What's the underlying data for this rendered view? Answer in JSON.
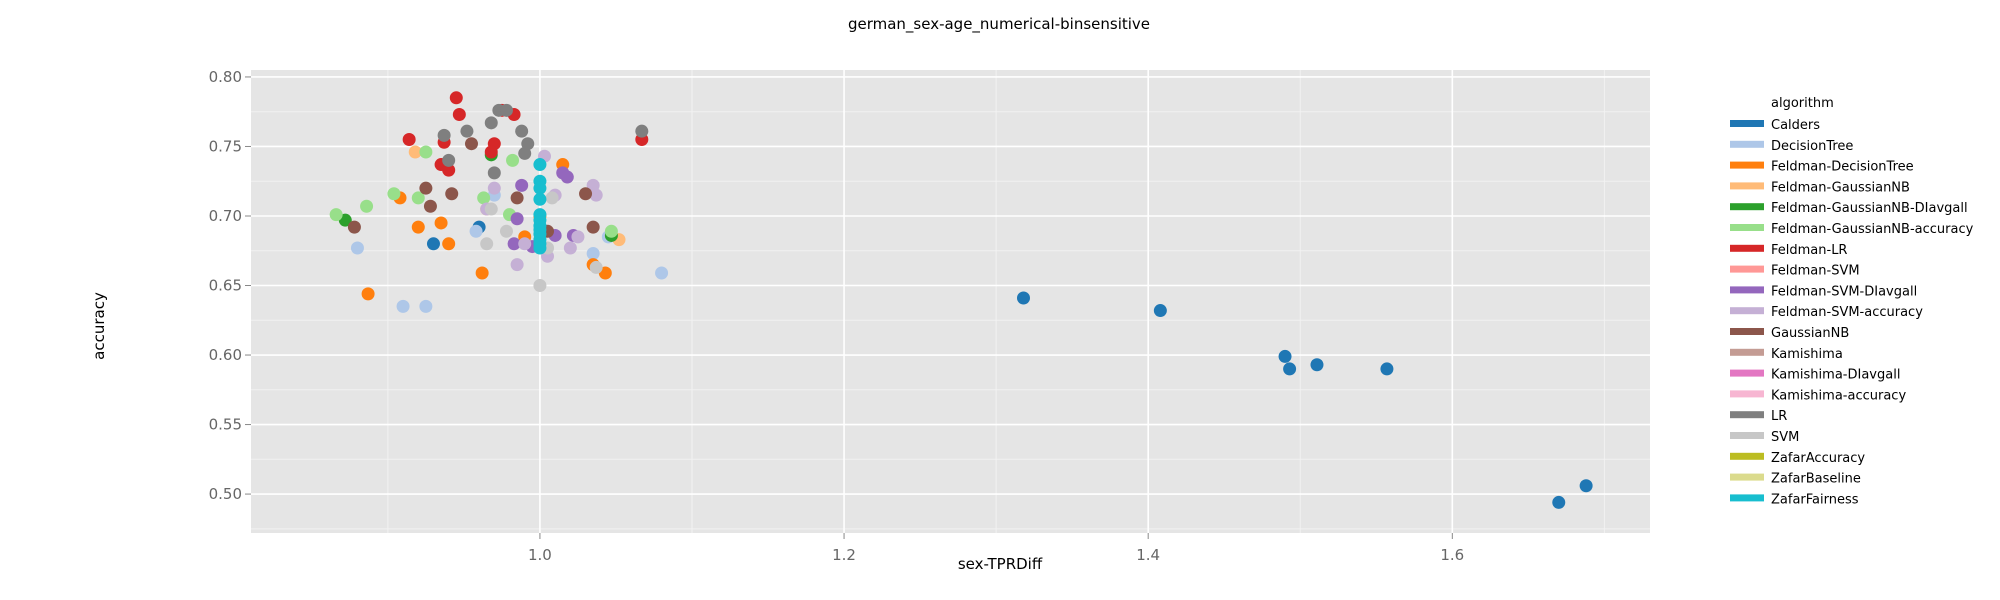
{
  "chart_data": {
    "type": "scatter",
    "title": "german_sex-age_numerical-binsensitive",
    "xlabel": "sex-TPRDiff",
    "ylabel": "accuracy",
    "xlim": [
      0.81,
      1.73
    ],
    "ylim": [
      0.472,
      0.805
    ],
    "xticks": [
      1.0,
      1.2,
      1.4,
      1.6
    ],
    "xtick_labels": [
      "1.0",
      "1.2",
      "1.4",
      "1.6"
    ],
    "yticks": [
      0.5,
      0.55,
      0.6,
      0.65,
      0.7,
      0.75,
      0.8
    ],
    "ytick_labels": [
      "0.50",
      "0.55",
      "0.60",
      "0.65",
      "0.70",
      "0.75",
      "0.80"
    ],
    "grid": true,
    "legend_title": "algorithm",
    "legend_position": "right",
    "series": [
      {
        "name": "Calders",
        "color": "#1f77b4",
        "points": [
          [
            0.96,
            0.692
          ],
          [
            0.93,
            0.68
          ],
          [
            1.318,
            0.641
          ],
          [
            1.408,
            0.632
          ],
          [
            1.49,
            0.599
          ],
          [
            1.493,
            0.59
          ],
          [
            1.511,
            0.593
          ],
          [
            1.557,
            0.59
          ],
          [
            1.67,
            0.494
          ],
          [
            1.688,
            0.506
          ]
        ]
      },
      {
        "name": "DecisionTree",
        "color": "#aec7e8",
        "points": [
          [
            0.88,
            0.677
          ],
          [
            0.91,
            0.635
          ],
          [
            0.925,
            0.635
          ],
          [
            0.958,
            0.689
          ],
          [
            0.97,
            0.715
          ],
          [
            1.035,
            0.673
          ],
          [
            1.08,
            0.659
          ],
          [
            1.045,
            0.685
          ]
        ]
      },
      {
        "name": "Feldman-DecisionTree",
        "color": "#ff7f0e",
        "points": [
          [
            0.887,
            0.644
          ],
          [
            0.908,
            0.713
          ],
          [
            0.92,
            0.692
          ],
          [
            0.935,
            0.695
          ],
          [
            0.94,
            0.68
          ],
          [
            0.962,
            0.659
          ],
          [
            0.99,
            0.685
          ],
          [
            1.015,
            0.737
          ],
          [
            1.035,
            0.665
          ],
          [
            1.043,
            0.659
          ],
          [
            1.0,
            0.7
          ]
        ]
      },
      {
        "name": "Feldman-GaussianNB",
        "color": "#ffbb78",
        "points": [
          [
            0.918,
            0.746
          ],
          [
            1.052,
            0.683
          ],
          [
            0.965,
            0.705
          ]
        ]
      },
      {
        "name": "Feldman-GaussianNB-DIavgall",
        "color": "#2ca02c",
        "points": [
          [
            0.872,
            0.697
          ],
          [
            0.968,
            0.744
          ],
          [
            1.047,
            0.686
          ]
        ]
      },
      {
        "name": "Feldman-GaussianNB-accuracy",
        "color": "#98df8a",
        "points": [
          [
            0.866,
            0.701
          ],
          [
            0.886,
            0.707
          ],
          [
            0.904,
            0.716
          ],
          [
            0.92,
            0.713
          ],
          [
            0.925,
            0.746
          ],
          [
            0.963,
            0.713
          ],
          [
            0.98,
            0.701
          ],
          [
            0.982,
            0.74
          ],
          [
            1.047,
            0.689
          ]
        ]
      },
      {
        "name": "Feldman-LR",
        "color": "#d62728",
        "points": [
          [
            0.914,
            0.755
          ],
          [
            0.935,
            0.737
          ],
          [
            0.937,
            0.753
          ],
          [
            0.94,
            0.733
          ],
          [
            0.945,
            0.785
          ],
          [
            0.947,
            0.773
          ],
          [
            0.97,
            0.752
          ],
          [
            0.975,
            0.776
          ],
          [
            0.983,
            0.773
          ],
          [
            0.968,
            0.746
          ],
          [
            1.067,
            0.755
          ]
        ]
      },
      {
        "name": "Feldman-SVM",
        "color": "#ff9896",
        "points": []
      },
      {
        "name": "Feldman-SVM-DIavgall",
        "color": "#9467bd",
        "points": [
          [
            0.983,
            0.68
          ],
          [
            0.985,
            0.698
          ],
          [
            0.988,
            0.722
          ],
          [
            0.995,
            0.678
          ],
          [
            1.01,
            0.686
          ],
          [
            1.015,
            0.731
          ],
          [
            1.018,
            0.728
          ],
          [
            1.022,
            0.686
          ]
        ]
      },
      {
        "name": "Feldman-SVM-accuracy",
        "color": "#c5b0d5",
        "points": [
          [
            0.965,
            0.705
          ],
          [
            0.97,
            0.72
          ],
          [
            0.985,
            0.665
          ],
          [
            0.99,
            0.68
          ],
          [
            1.003,
            0.743
          ],
          [
            1.005,
            0.671
          ],
          [
            1.02,
            0.677
          ],
          [
            1.035,
            0.722
          ],
          [
            1.037,
            0.715
          ],
          [
            1.01,
            0.715
          ],
          [
            1.025,
            0.685
          ]
        ]
      },
      {
        "name": "GaussianNB",
        "color": "#8c564b",
        "points": [
          [
            0.878,
            0.692
          ],
          [
            0.925,
            0.72
          ],
          [
            0.928,
            0.707
          ],
          [
            0.942,
            0.716
          ],
          [
            0.955,
            0.752
          ],
          [
            0.985,
            0.713
          ],
          [
            1.005,
            0.689
          ],
          [
            1.03,
            0.716
          ],
          [
            1.035,
            0.692
          ]
        ]
      },
      {
        "name": "Kamishima",
        "color": "#c49c94",
        "points": []
      },
      {
        "name": "Kamishima-DIavgall",
        "color": "#e377c2",
        "points": []
      },
      {
        "name": "Kamishima-accuracy",
        "color": "#f7b6d2",
        "points": []
      },
      {
        "name": "LR",
        "color": "#7f7f7f",
        "points": [
          [
            0.937,
            0.758
          ],
          [
            0.94,
            0.74
          ],
          [
            0.952,
            0.761
          ],
          [
            0.968,
            0.767
          ],
          [
            0.97,
            0.731
          ],
          [
            0.973,
            0.776
          ],
          [
            0.978,
            0.776
          ],
          [
            0.988,
            0.761
          ],
          [
            0.99,
            0.745
          ],
          [
            0.992,
            0.752
          ],
          [
            1.067,
            0.761
          ]
        ]
      },
      {
        "name": "SVM",
        "color": "#c7c7c7",
        "points": [
          [
            0.965,
            0.68
          ],
          [
            0.968,
            0.705
          ],
          [
            0.978,
            0.689
          ],
          [
            1.0,
            0.65
          ],
          [
            1.005,
            0.677
          ],
          [
            1.008,
            0.713
          ],
          [
            1.037,
            0.663
          ]
        ]
      },
      {
        "name": "ZafarAccuracy",
        "color": "#bcbd22",
        "points": []
      },
      {
        "name": "ZafarBaseline",
        "color": "#dbdb8d",
        "points": []
      },
      {
        "name": "ZafarFairness",
        "color": "#17becf",
        "points": [
          [
            1.0,
            0.737
          ],
          [
            1.0,
            0.725
          ],
          [
            1.0,
            0.72
          ],
          [
            1.0,
            0.712
          ],
          [
            1.0,
            0.701
          ],
          [
            1.0,
            0.697
          ],
          [
            1.0,
            0.693
          ],
          [
            1.0,
            0.69
          ],
          [
            1.0,
            0.687
          ],
          [
            1.0,
            0.683
          ],
          [
            1.0,
            0.68
          ],
          [
            1.0,
            0.677
          ]
        ]
      }
    ]
  }
}
